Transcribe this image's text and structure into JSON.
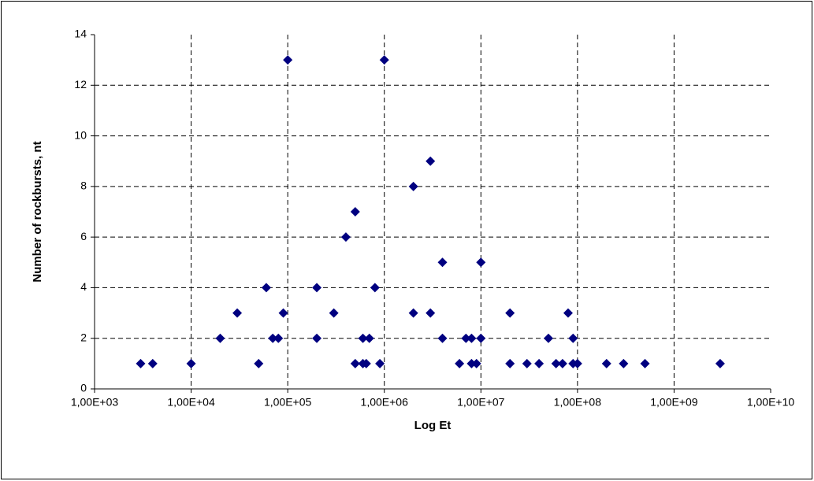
{
  "chart_data": {
    "type": "scatter",
    "x_label": "Log Et",
    "y_label": "Number of rockbursts, nt",
    "x_log": true,
    "grid": true,
    "series": [
      {
        "color": "#000080",
        "x": [
          3000,
          4000,
          10000,
          20000,
          30000,
          50000,
          60000,
          70000,
          80000,
          90000,
          100000,
          200000,
          200000,
          300000,
          400000,
          500000,
          500000,
          600000,
          600000,
          650000,
          700000,
          800000,
          900000,
          1000000,
          2000000,
          2000000,
          3000000,
          3000000,
          4000000,
          4000000,
          6000000,
          7000000,
          8000000,
          8000000,
          9000000,
          10000000,
          10000000,
          20000000,
          20000000,
          30000000,
          40000000,
          50000000,
          60000000,
          70000000,
          80000000,
          90000000,
          90000000,
          100000000,
          200000000,
          300000000,
          500000000,
          3000000000
        ],
        "values": [
          1,
          1,
          1,
          2,
          3,
          1,
          4,
          2,
          2,
          3,
          13,
          4,
          2,
          3,
          6,
          7,
          1,
          2,
          1,
          1,
          2,
          4,
          1,
          13,
          8,
          3,
          9,
          3,
          5,
          2,
          1,
          2,
          2,
          1,
          1,
          5,
          2,
          3,
          1,
          1,
          1,
          2,
          1,
          1,
          3,
          2,
          1,
          1,
          1,
          1,
          1,
          1
        ]
      }
    ],
    "xlim": [
      1000,
      10000000000
    ],
    "xticks": [
      {
        "value": 1000,
        "label": "1,00E+03"
      },
      {
        "value": 10000,
        "label": "1,00E+04"
      },
      {
        "value": 100000,
        "label": "1,00E+05"
      },
      {
        "value": 1000000,
        "label": "1,00E+06"
      },
      {
        "value": 10000000,
        "label": "1,00E+07"
      },
      {
        "value": 100000000,
        "label": "1,00E+08"
      },
      {
        "value": 1000000000,
        "label": "1,00E+09"
      },
      {
        "value": 10000000000,
        "label": "1,00E+10"
      }
    ],
    "ylim": [
      0,
      14
    ],
    "yticks": [
      0,
      2,
      4,
      6,
      8,
      10,
      12,
      14
    ]
  }
}
